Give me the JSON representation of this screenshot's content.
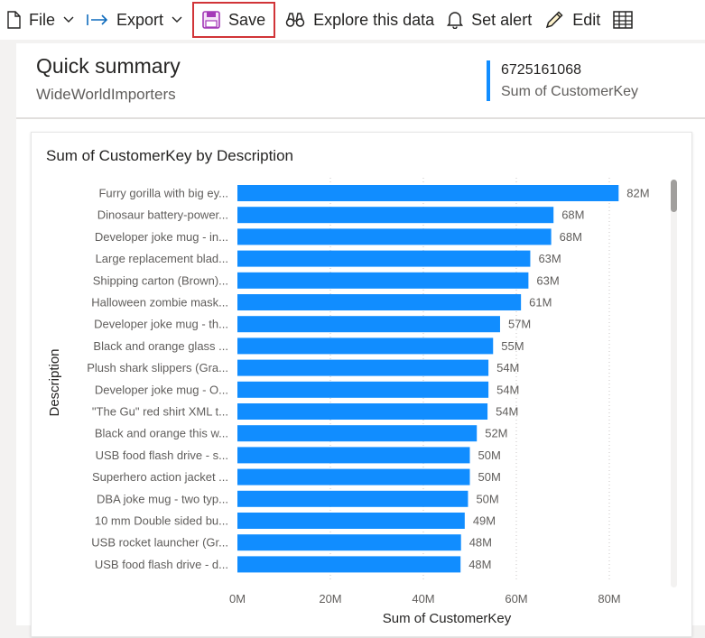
{
  "toolbar": {
    "file_label": "File",
    "export_label": "Export",
    "save_label": "Save",
    "explore_label": "Explore this data",
    "alert_label": "Set alert",
    "edit_label": "Edit"
  },
  "summary": {
    "title": "Quick summary",
    "subtitle": "WideWorldImporters",
    "kpi_value": "6725161068",
    "kpi_label": "Sum of CustomerKey"
  },
  "colors": {
    "bar": "#118dff",
    "accent": "#118dff",
    "save_highlight": "#d13438",
    "save_icon": "#a43ab8"
  },
  "chart_data": {
    "type": "bar",
    "orientation": "horizontal",
    "title": "Sum of CustomerKey by Description",
    "xlabel": "Sum of CustomerKey",
    "ylabel": "Description",
    "xlim": [
      0,
      90
    ],
    "ticks": [
      {
        "value": 0,
        "label": "0M"
      },
      {
        "value": 20,
        "label": "20M"
      },
      {
        "value": 40,
        "label": "40M"
      },
      {
        "value": 60,
        "label": "60M"
      },
      {
        "value": 80,
        "label": "80M"
      }
    ],
    "grid": true,
    "categories": [
      "Furry gorilla with big ey...",
      "Dinosaur battery-power...",
      "Developer joke mug - in...",
      "Large replacement blad...",
      "Shipping carton (Brown)...",
      "Halloween zombie mask...",
      "Developer joke mug - th...",
      "Black and orange glass ...",
      "Plush shark slippers (Gra...",
      "Developer joke mug - O...",
      "\"The Gu\" red shirt XML t...",
      "Black and orange this w...",
      "USB food flash drive - s...",
      "Superhero action jacket ...",
      "DBA joke mug - two typ...",
      "10 mm Double sided bu...",
      "USB rocket launcher (Gr...",
      "USB food flash drive - d..."
    ],
    "values": [
      82,
      68,
      67.5,
      63,
      62.6,
      61,
      56.5,
      55,
      54,
      54,
      53.8,
      51.5,
      50,
      50,
      49.6,
      48.9,
      48.1,
      48
    ],
    "data_labels": [
      "82M",
      "68M",
      "68M",
      "63M",
      "63M",
      "61M",
      "57M",
      "55M",
      "54M",
      "54M",
      "54M",
      "52M",
      "50M",
      "50M",
      "50M",
      "49M",
      "48M",
      "48M"
    ]
  }
}
